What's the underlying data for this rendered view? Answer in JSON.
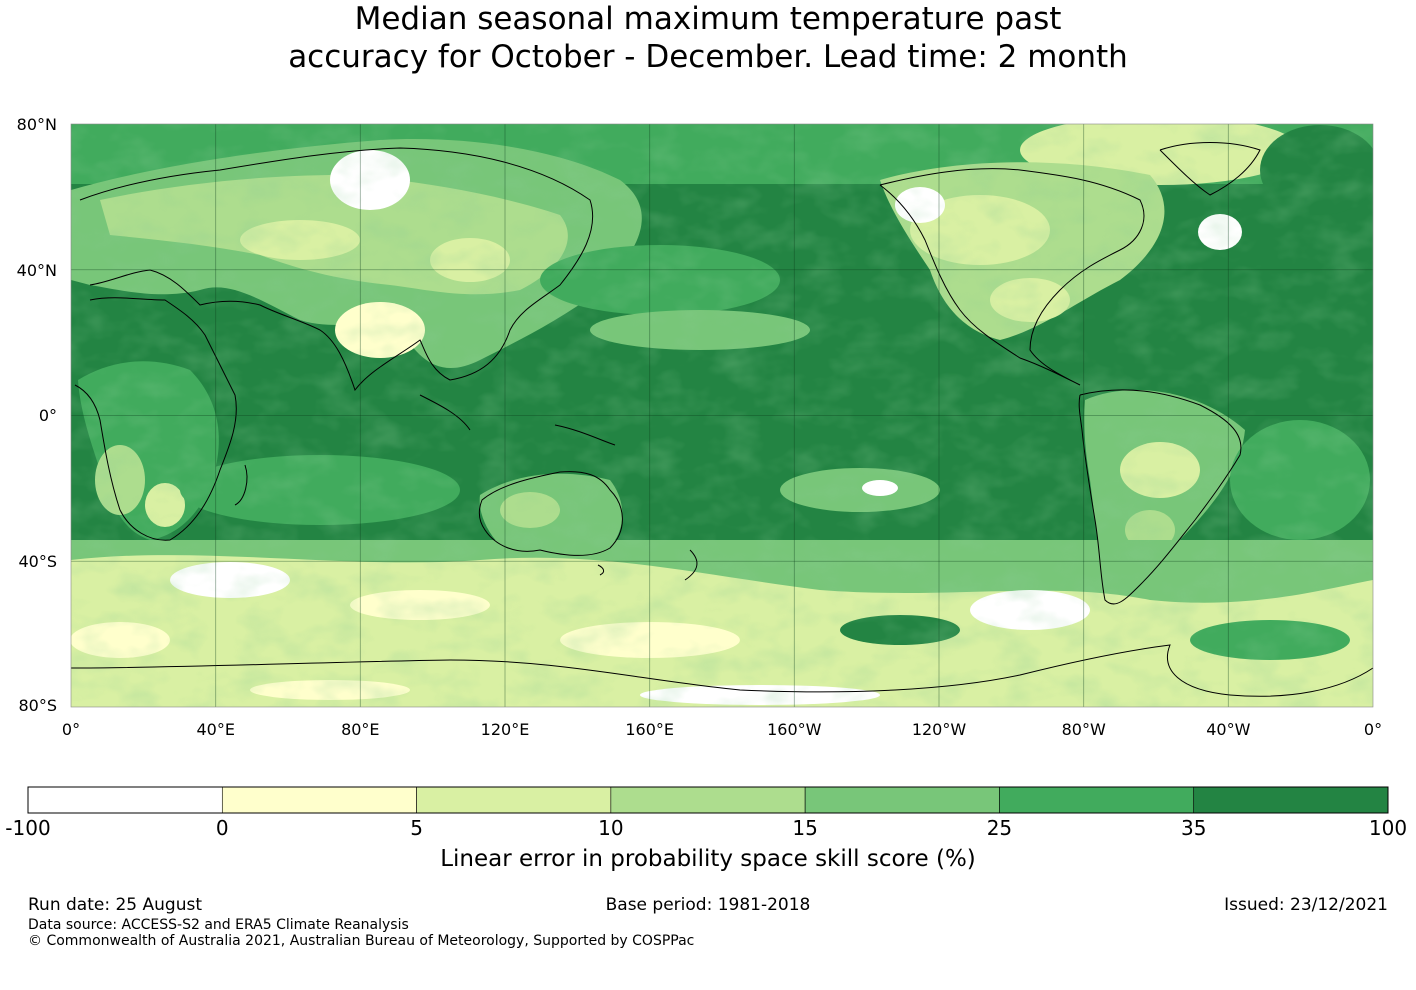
{
  "title": {
    "line1": "Median seasonal maximum temperature past",
    "line2": "accuracy for October - December. Lead time: 2 month"
  },
  "map": {
    "lat_labels": [
      "80°N",
      "40°N",
      "0°",
      "40°S",
      "80°S"
    ],
    "lon_labels": [
      "0°",
      "40°E",
      "80°E",
      "120°E",
      "160°E",
      "160°W",
      "120°W",
      "80°W",
      "40°W",
      "0°"
    ],
    "grid_color": "#0b3d1c"
  },
  "colorbar": {
    "title": "Linear error in probability space skill score (%)",
    "tick_labels": [
      "-100",
      "0",
      "5",
      "10",
      "15",
      "25",
      "35",
      "100"
    ],
    "colors": [
      "#ffffff",
      "#ffffcc",
      "#d9f0a3",
      "#addd8e",
      "#78c679",
      "#41ab5d",
      "#238443"
    ]
  },
  "footer": {
    "run_date": "Run date: 25 August",
    "base_period": "Base period: 1981-2018",
    "issued": "Issued: 23/12/2021",
    "data_source": "Data source: ACCESS-S2 and ERA5 Climate Reanalysis",
    "copyright": "© Commonwealth of Australia 2021, Australian Bureau of Meteorology, Supported by COSPPac"
  }
}
